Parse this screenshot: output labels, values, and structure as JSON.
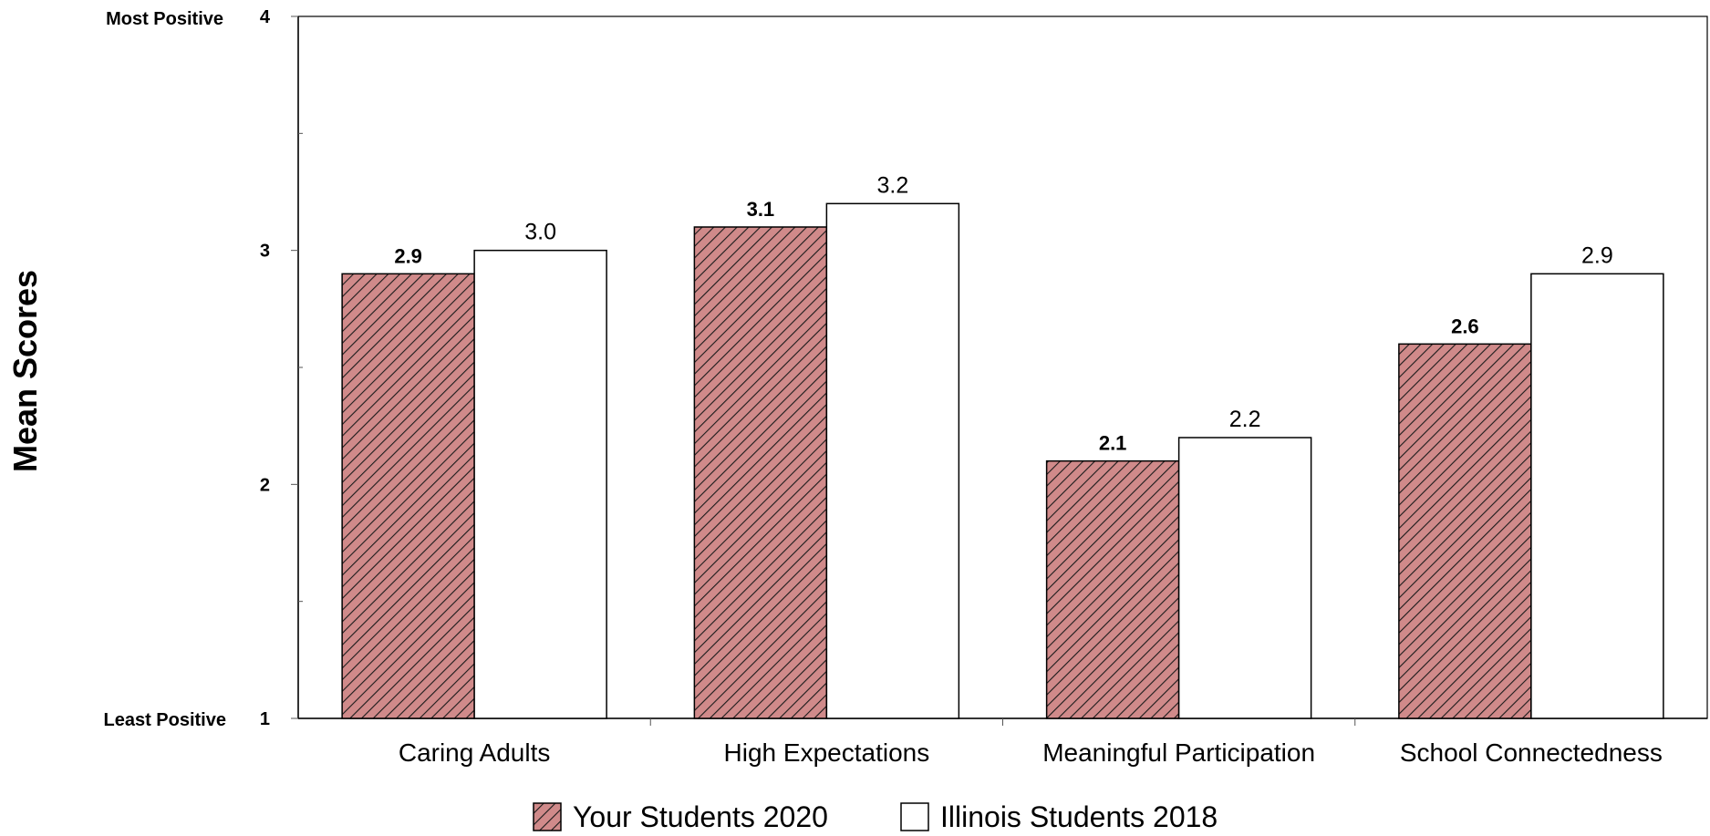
{
  "chart_data": {
    "type": "bar",
    "title": "",
    "xlabel": "",
    "ylabel": "Mean Scores",
    "ylim": [
      1,
      4
    ],
    "yticks": [
      1,
      2,
      3,
      4
    ],
    "ytick_side_labels": {
      "1": "Least Positive",
      "4": "Most Positive"
    },
    "categories": [
      "Caring Adults",
      "High Expectations",
      "Meaningful Participation",
      "School Connectedness"
    ],
    "series": [
      {
        "name": "Your Students 2020",
        "values": [
          2.9,
          3.1,
          2.1,
          2.6
        ],
        "labels": [
          "2.9",
          "3.1",
          "2.1",
          "2.6"
        ],
        "color": "#d08a8a",
        "pattern": "diagonal-hatch"
      },
      {
        "name": "Illinois Students 2018",
        "values": [
          3.0,
          3.2,
          2.2,
          2.9
        ],
        "labels": [
          "3.0",
          "3.2",
          "2.2",
          "2.9"
        ],
        "color": "#ffffff",
        "pattern": "none"
      }
    ],
    "grid": false,
    "legend_position": "bottom-center"
  }
}
